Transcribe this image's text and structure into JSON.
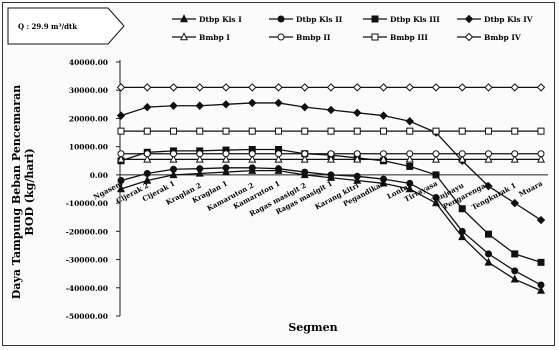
{
  "flow_box": {
    "label": "Q : 29.9 m³/dtk"
  },
  "chart_data": {
    "type": "line",
    "title": "",
    "xlabel": "Segmen",
    "ylabel": "Daya Tampung Beban Pencemaran BOD (kg/hari)",
    "ylim": [
      -50000,
      40000
    ],
    "yticks": [
      40000,
      30000,
      20000,
      10000,
      0,
      -10000,
      -20000,
      -30000,
      -40000,
      -50000
    ],
    "ytick_labels": [
      "40000.00",
      "30000.00",
      "20000.00",
      "10000.00",
      "0.00",
      "-10000.00",
      "-20000.00",
      "-30000.00",
      "-40000.00",
      "-50000.00"
    ],
    "grid": false,
    "legend_position": "top",
    "categories": [
      "Ngasem",
      "Cijerak 2",
      "Cijerak 1",
      "Kraglan 2",
      "Kraglan 1",
      "Kamaruton 2",
      "Kamaruton 1",
      "Ragas masigit 2",
      "Ragas masigit 1",
      "Karang kitri",
      "Pegandikan",
      "Lontar",
      "Tirtayasa",
      "Tenjoayu",
      "Pengarengan",
      "Tengkurak 1",
      "Muara"
    ],
    "category_labels": [
      "Ngasem",
      "Cijerak 2",
      "Cijerak 1",
      "Kraglan 2",
      "Kraglan 1",
      "Kamaruton 2",
      "Kamaruton 1",
      "Ragas masigit 2",
      "Ragas masigit 1",
      "Karang kitri",
      "Pegandikan",
      "Lontar",
      "Tirtayasa",
      "Tenjoayu",
      "Pengarengan",
      "Tengkurak 1",
      "Muara"
    ],
    "series": [
      {
        "name": "Dtbp Kls I",
        "marker": "triangle",
        "filled": true,
        "values": [
          -5000,
          -2000,
          0,
          500,
          1000,
          1500,
          1500,
          0,
          -1000,
          -2000,
          -3000,
          -5000,
          -10000,
          -22000,
          -31000,
          -37000,
          -41000
        ]
      },
      {
        "name": "Dtbp Kls II",
        "marker": "circle",
        "filled": true,
        "values": [
          -2000,
          500,
          2000,
          2200,
          2500,
          2500,
          2200,
          1000,
          0,
          -500,
          -1500,
          -3000,
          -8000,
          -20000,
          -28000,
          -34000,
          -39000
        ]
      },
      {
        "name": "Dtbp Kls III",
        "marker": "square",
        "filled": true,
        "values": [
          5000,
          8000,
          8500,
          8500,
          8800,
          9000,
          9000,
          7500,
          7000,
          6000,
          5000,
          3000,
          0,
          -12000,
          -21000,
          -28000,
          -31000
        ]
      },
      {
        "name": "Dtbp Kls IV",
        "marker": "diamond",
        "filled": true,
        "values": [
          21000,
          24000,
          24500,
          24500,
          25000,
          25500,
          25500,
          24000,
          23000,
          22000,
          21000,
          19000,
          15000,
          5000,
          -4000,
          -10000,
          -16000
        ]
      },
      {
        "name": "Bmbp I",
        "marker": "triangle",
        "filled": false,
        "values": [
          5500,
          5500,
          5500,
          5500,
          5500,
          5500,
          5500,
          5500,
          5500,
          5500,
          5500,
          5500,
          5500,
          5500,
          5500,
          5500,
          5500
        ]
      },
      {
        "name": "Bmbp II",
        "marker": "circle",
        "filled": false,
        "values": [
          7500,
          7500,
          7500,
          7500,
          7500,
          7500,
          7500,
          7500,
          7500,
          7500,
          7500,
          7500,
          7500,
          7500,
          7500,
          7500,
          7500
        ]
      },
      {
        "name": "Bmbp III",
        "marker": "square",
        "filled": false,
        "values": [
          15500,
          15500,
          15500,
          15500,
          15500,
          15500,
          15500,
          15500,
          15500,
          15500,
          15500,
          15500,
          15500,
          15500,
          15500,
          15500,
          15500
        ]
      },
      {
        "name": "Bmbp IV",
        "marker": "diamond",
        "filled": false,
        "values": [
          31000,
          31000,
          31000,
          31000,
          31000,
          31000,
          31000,
          31000,
          31000,
          31000,
          31000,
          31000,
          31000,
          31000,
          31000,
          31000,
          31000
        ]
      }
    ]
  }
}
